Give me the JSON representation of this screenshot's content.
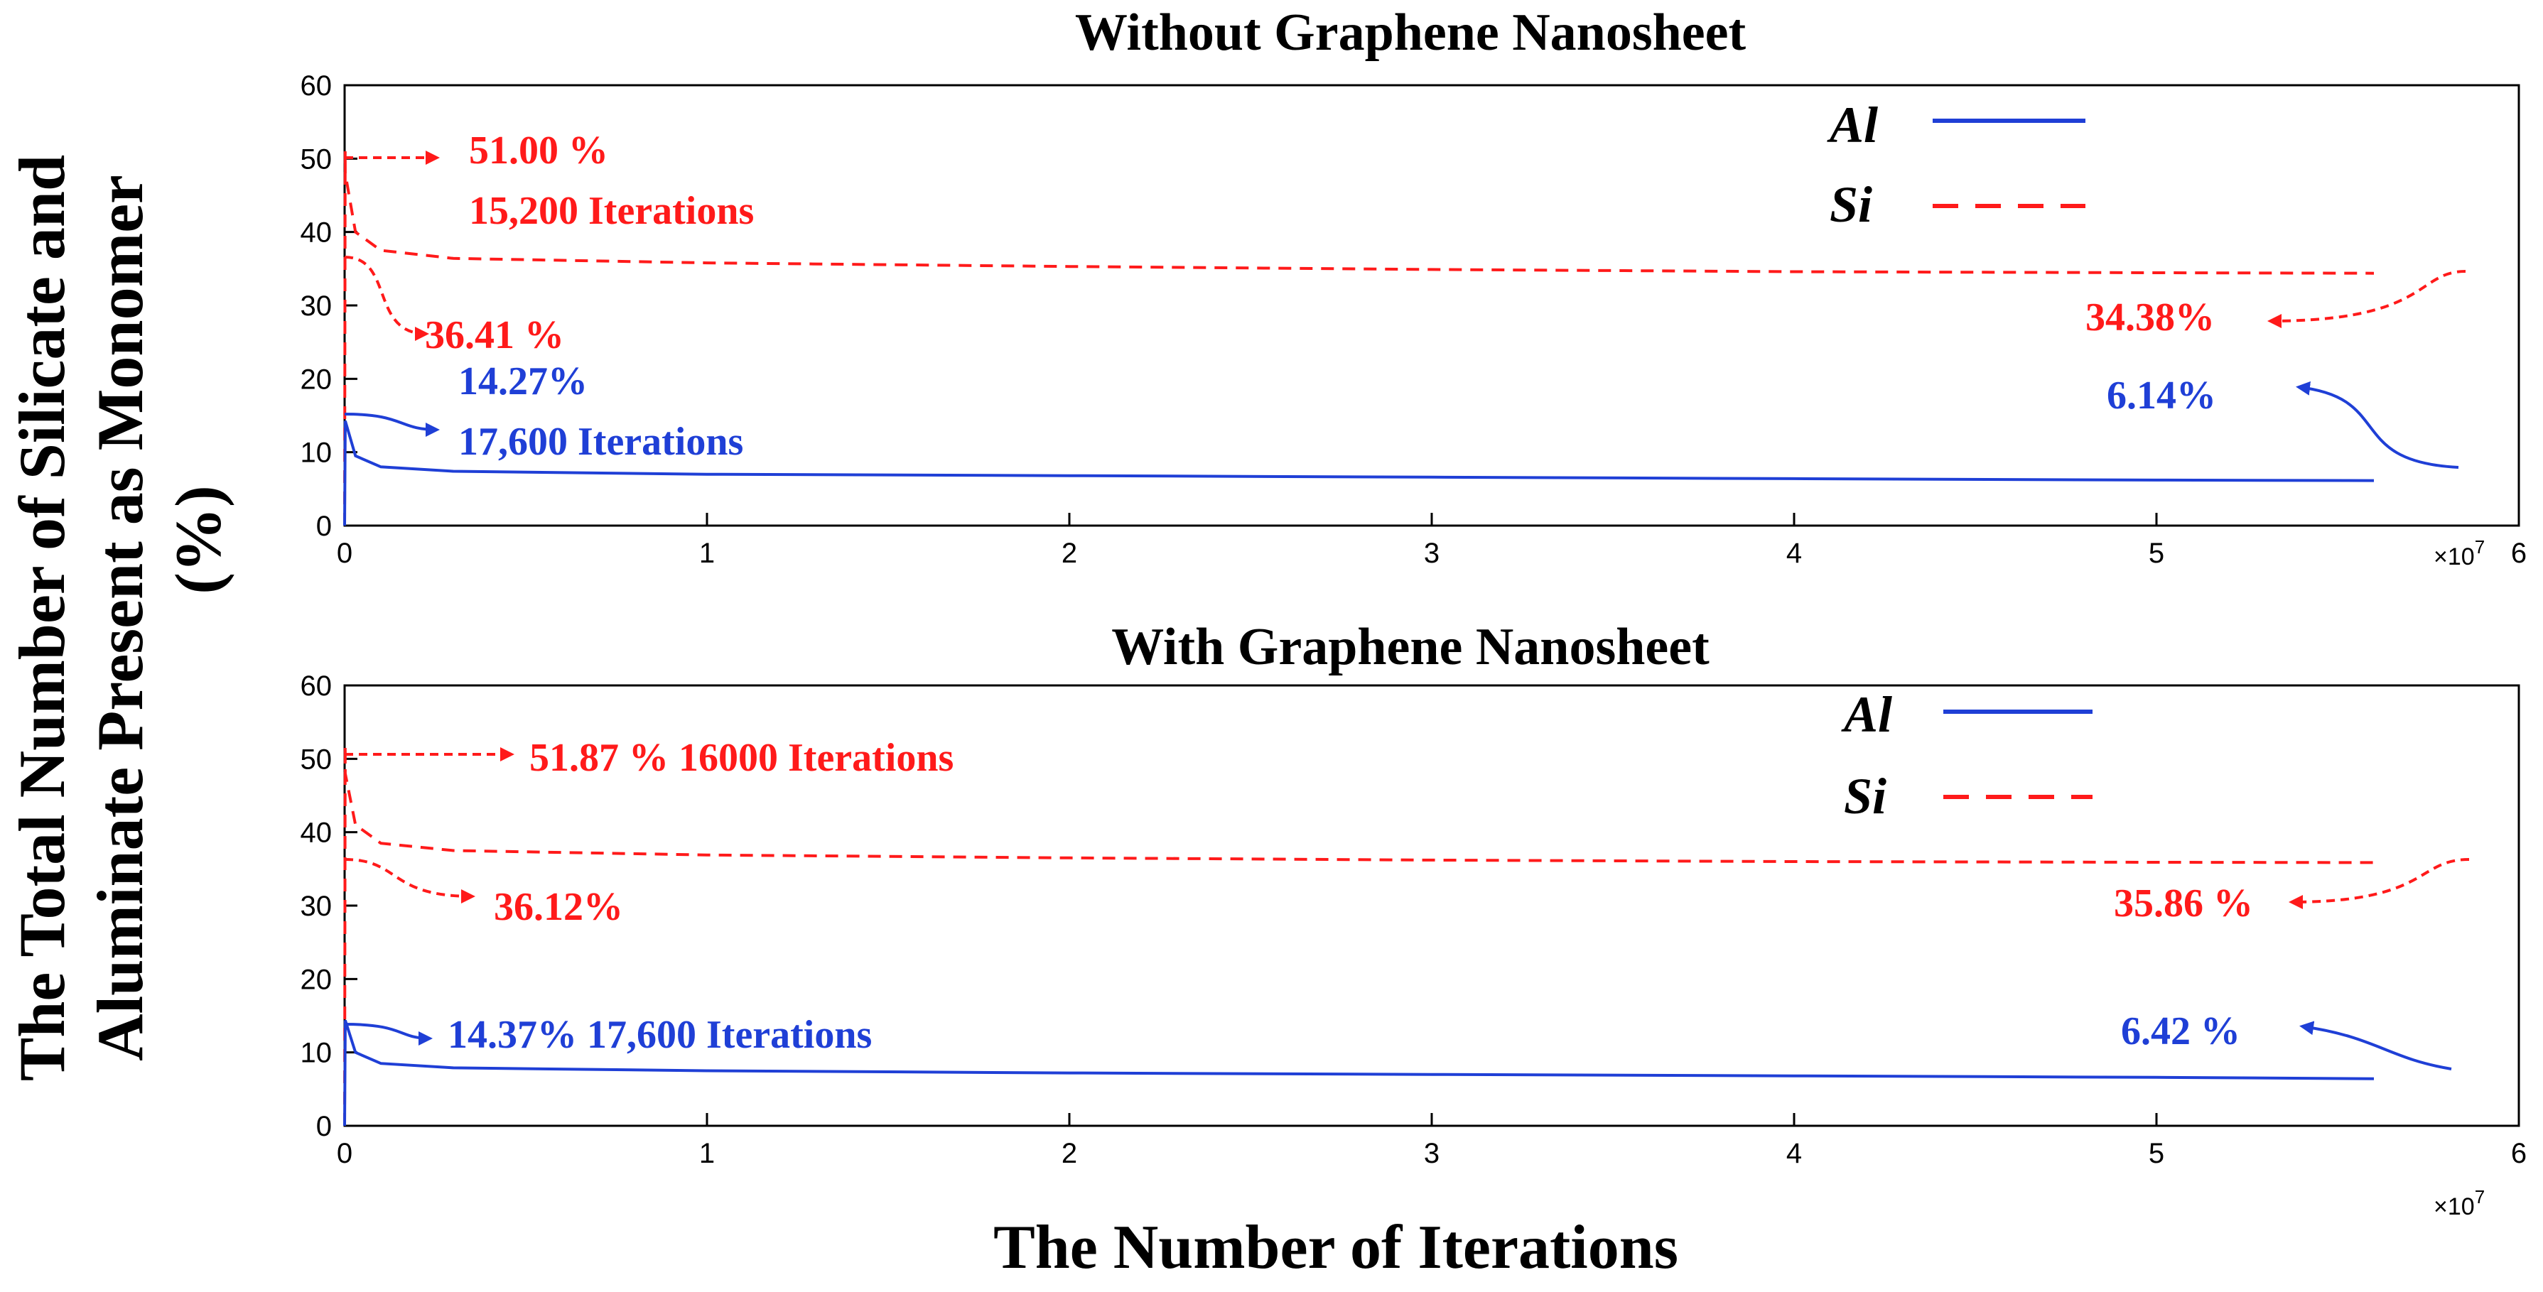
{
  "figure": {
    "ylabel_line1": "The Total Number of Silicate and",
    "ylabel_line2": "Aluminate Present as Monomer",
    "ylabel_line3": "(%)",
    "xlabel": "The Number of Iterations"
  },
  "colors": {
    "al": "#1f3fd6",
    "si": "#ff1a1a",
    "axis": "#000000"
  },
  "chart_data": [
    {
      "type": "line",
      "title": "Without Graphene Nanosheet",
      "xlim": [
        0,
        60000000
      ],
      "ylim": [
        0,
        60
      ],
      "xticks": [
        0,
        10000000,
        20000000,
        30000000,
        40000000,
        50000000,
        60000000
      ],
      "xtick_labels": [
        "0",
        "1",
        "2",
        "3",
        "4",
        "5",
        "6"
      ],
      "yticks": [
        0,
        10,
        20,
        30,
        40,
        50,
        60
      ],
      "ytick_labels": [
        "0",
        "10",
        "20",
        "30",
        "40",
        "50",
        "60"
      ],
      "x_exponent_base": "×10",
      "x_exponent_power": "7",
      "legend": {
        "position": "top-right",
        "entries": [
          {
            "label": "Al",
            "style": "solid"
          },
          {
            "label": "Si",
            "style": "dashed"
          }
        ]
      },
      "series": [
        {
          "name": "Al",
          "style": "solid",
          "x": [
            0,
            15200,
            17600,
            300000,
            1000000,
            3000000,
            10000000,
            20000000,
            30000000,
            40000000,
            50000000,
            56000000
          ],
          "y": [
            0,
            12.0,
            14.27,
            9.5,
            8.0,
            7.4,
            7.0,
            6.8,
            6.6,
            6.4,
            6.2,
            6.14
          ]
        },
        {
          "name": "Si",
          "style": "dashed",
          "x": [
            0,
            15200,
            17600,
            300000,
            1000000,
            3000000,
            10000000,
            20000000,
            30000000,
            40000000,
            50000000,
            56000000
          ],
          "y": [
            0,
            51.0,
            48.0,
            40.0,
            37.5,
            36.41,
            35.8,
            35.3,
            34.9,
            34.6,
            34.45,
            34.38
          ]
        }
      ],
      "annotations": [
        {
          "text": "51.00 %",
          "color": "si"
        },
        {
          "text": "15,200 Iterations",
          "color": "si"
        },
        {
          "text": "36.41 %",
          "color": "si"
        },
        {
          "text": "34.38%",
          "color": "si"
        },
        {
          "text": "14.27%",
          "color": "al"
        },
        {
          "text": "17,600 Iterations",
          "color": "al"
        },
        {
          "text": "6.14%",
          "color": "al"
        }
      ]
    },
    {
      "type": "line",
      "title": "With Graphene Nanosheet",
      "xlim": [
        0,
        60000000
      ],
      "ylim": [
        0,
        60
      ],
      "xticks": [
        0,
        10000000,
        20000000,
        30000000,
        40000000,
        50000000,
        60000000
      ],
      "xtick_labels": [
        "0",
        "1",
        "2",
        "3",
        "4",
        "5",
        "6"
      ],
      "yticks": [
        0,
        10,
        20,
        30,
        40,
        50,
        60
      ],
      "ytick_labels": [
        "0",
        "10",
        "20",
        "30",
        "40",
        "50",
        "60"
      ],
      "x_exponent_base": "×10",
      "x_exponent_power": "7",
      "legend": {
        "position": "top-right",
        "entries": [
          {
            "label": "Al",
            "style": "solid"
          },
          {
            "label": "Si",
            "style": "dashed"
          }
        ]
      },
      "series": [
        {
          "name": "Al",
          "style": "solid",
          "x": [
            0,
            16000,
            17600,
            300000,
            1000000,
            3000000,
            10000000,
            20000000,
            30000000,
            40000000,
            50000000,
            56000000
          ],
          "y": [
            0,
            12.0,
            14.37,
            10.0,
            8.5,
            7.9,
            7.5,
            7.2,
            7.0,
            6.8,
            6.6,
            6.42
          ]
        },
        {
          "name": "Si",
          "style": "dashed",
          "x": [
            0,
            16000,
            17600,
            300000,
            1000000,
            3000000,
            10000000,
            20000000,
            30000000,
            40000000,
            50000000,
            56000000
          ],
          "y": [
            0,
            51.87,
            48.0,
            41.0,
            38.5,
            37.5,
            36.9,
            36.5,
            36.2,
            36.0,
            35.9,
            35.86
          ]
        }
      ],
      "annotations": [
        {
          "text": "51.87 % 16000 Iterations",
          "color": "si"
        },
        {
          "text": "36.12%",
          "color": "si"
        },
        {
          "text": "35.86 %",
          "color": "si"
        },
        {
          "text": "14.37% 17,600 Iterations",
          "color": "al"
        },
        {
          "text": "6.42 %",
          "color": "al"
        }
      ]
    }
  ]
}
